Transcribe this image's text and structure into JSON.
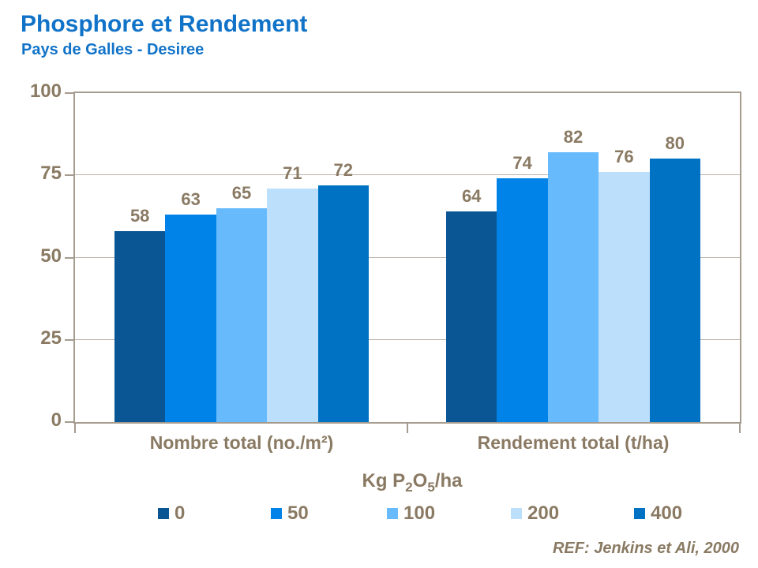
{
  "title": "Phosphore et Rendement",
  "subtitle": "Pays de Galles - Desiree",
  "reference": "REF: Jenkins et Ali, 2000",
  "colors": {
    "title_blue": "#1173C8",
    "text_brown": "#8A7A63",
    "axis_border": "#A59C8F",
    "gridline": "#BCB4A8"
  },
  "chart_data": {
    "type": "bar",
    "title": "Phosphore et Rendement",
    "subtitle": "Pays de Galles - Desiree",
    "categories": [
      "Nombre total (no./m²)",
      "Rendement total (t/ha)"
    ],
    "series": [
      {
        "name": "0",
        "color": "#0A5694",
        "values": [
          58,
          64
        ]
      },
      {
        "name": "50",
        "color": "#0083E8",
        "values": [
          63,
          74
        ]
      },
      {
        "name": "100",
        "color": "#67BAFB",
        "values": [
          65,
          82
        ]
      },
      {
        "name": "200",
        "color": "#BCDFFC",
        "values": [
          71,
          76
        ]
      },
      {
        "name": "400",
        "color": "#0072C3",
        "values": [
          72,
          80
        ]
      }
    ],
    "ylim": [
      0,
      100
    ],
    "yticks": [
      0,
      25,
      50,
      75,
      100
    ],
    "gridlines": [
      25,
      50,
      75
    ],
    "grid": true,
    "data_labels": true,
    "legend_title": "Kg P2O5/ha",
    "legend_title_parts": [
      {
        "text": "Kg P"
      },
      {
        "text": "2",
        "sub": true
      },
      {
        "text": "O"
      },
      {
        "text": "5",
        "sub": true
      },
      {
        "text": "/ha"
      }
    ],
    "legend_position": "bottom"
  }
}
